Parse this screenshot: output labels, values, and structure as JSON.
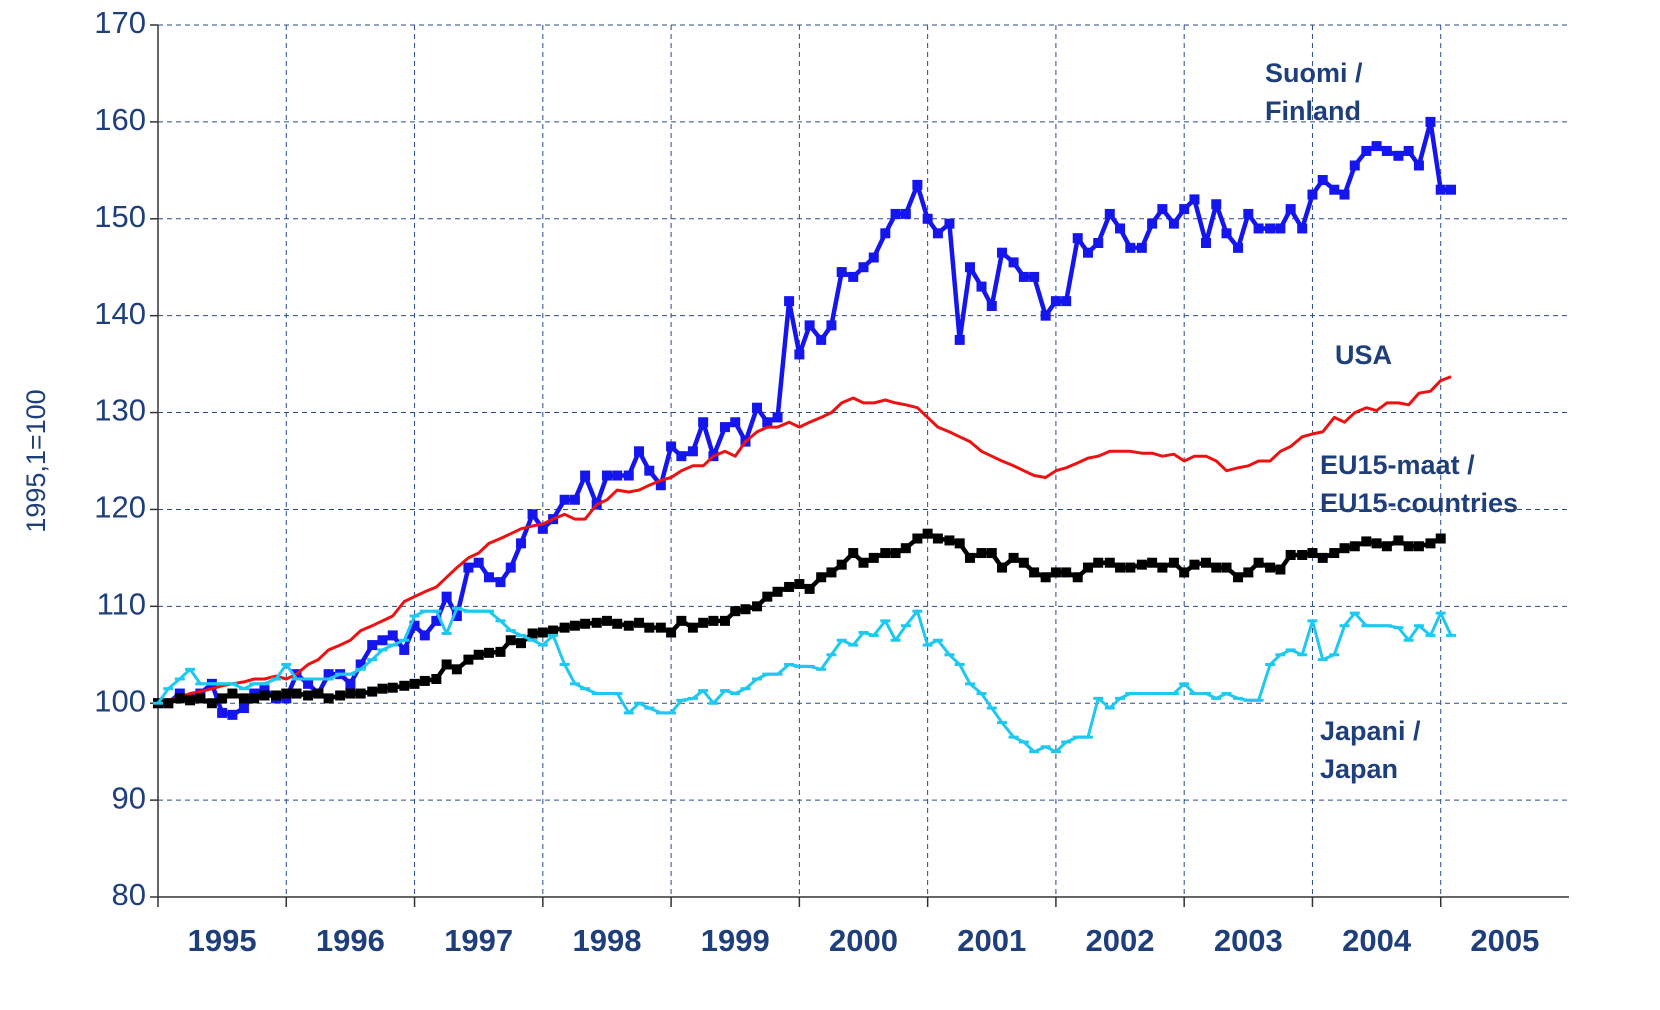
{
  "chart_data": {
    "type": "line",
    "y_label": "1995,1=100",
    "xlim": [
      1995,
      2006
    ],
    "xticks": [
      1995,
      1996,
      1997,
      1998,
      1999,
      2000,
      2001,
      2002,
      2003,
      2004,
      2005
    ],
    "ylim": [
      80,
      170
    ],
    "yticks": [
      80,
      90,
      100,
      110,
      120,
      130,
      140,
      150,
      160,
      170
    ],
    "grid": true,
    "x": [
      1995,
      1995.08,
      1995.17,
      1995.25,
      1995.33,
      1995.42,
      1995.5,
      1995.58,
      1995.67,
      1995.75,
      1995.83,
      1995.92,
      1996,
      1996.08,
      1996.17,
      1996.25,
      1996.33,
      1996.42,
      1996.5,
      1996.58,
      1996.67,
      1996.75,
      1996.83,
      1996.92,
      1997,
      1997.08,
      1997.17,
      1997.25,
      1997.33,
      1997.42,
      1997.5,
      1997.58,
      1997.67,
      1997.75,
      1997.83,
      1997.92,
      1998,
      1998.08,
      1998.17,
      1998.25,
      1998.33,
      1998.42,
      1998.5,
      1998.58,
      1998.67,
      1998.75,
      1998.83,
      1998.92,
      1999,
      1999.08,
      1999.17,
      1999.25,
      1999.33,
      1999.42,
      1999.5,
      1999.58,
      1999.67,
      1999.75,
      1999.83,
      1999.92,
      2000,
      2000.08,
      2000.17,
      2000.25,
      2000.33,
      2000.42,
      2000.5,
      2000.58,
      2000.67,
      2000.75,
      2000.83,
      2000.92,
      2001,
      2001.08,
      2001.17,
      2001.25,
      2001.33,
      2001.42,
      2001.5,
      2001.58,
      2001.67,
      2001.75,
      2001.83,
      2001.92,
      2002,
      2002.08,
      2002.17,
      2002.25,
      2002.33,
      2002.42,
      2002.5,
      2002.58,
      2002.67,
      2002.75,
      2002.83,
      2002.92,
      2003,
      2003.08,
      2003.17,
      2003.25,
      2003.33,
      2003.42,
      2003.5,
      2003.58,
      2003.67,
      2003.75,
      2003.83,
      2003.92,
      2004,
      2004.08,
      2004.17,
      2004.25,
      2004.33,
      2004.42,
      2004.5,
      2004.58,
      2004.67,
      2004.75,
      2004.83,
      2004.92,
      2005,
      2005.08
    ],
    "series": [
      {
        "name": [
          "Suomi /",
          "Finland"
        ],
        "color": "#1515ee",
        "marker": "square",
        "width": 4.5,
        "values": [
          100,
          100,
          101,
          100.5,
          101,
          102,
          99,
          98.8,
          99.5,
          101,
          101.5,
          100.5,
          100.5,
          103,
          102,
          101,
          103,
          103,
          102,
          104,
          106,
          106.5,
          107,
          105.5,
          108,
          107,
          108.5,
          111,
          109,
          114,
          114.5,
          113,
          112.5,
          114,
          116.5,
          119.5,
          118,
          119,
          121,
          121,
          123.5,
          120.5,
          123.5,
          123.5,
          123.5,
          126,
          124,
          122.5,
          126.5,
          125.5,
          126,
          129,
          125.5,
          128.5,
          129,
          127,
          130.5,
          129,
          129.5,
          141.5,
          136,
          139,
          137.5,
          139,
          144.5,
          144,
          145,
          146,
          148.5,
          150.5,
          150.5,
          153.5,
          150,
          148.5,
          149.5,
          137.5,
          145,
          143,
          141,
          146.5,
          145.5,
          144,
          144,
          140,
          141.5,
          141.5,
          148,
          146.5,
          147.5,
          150.5,
          149,
          147,
          147,
          149.5,
          151,
          149.5,
          151,
          152,
          147.5,
          151.5,
          148.5,
          147,
          150.5,
          149,
          149,
          149,
          151,
          149,
          152.5,
          154,
          153,
          152.5,
          155.5,
          157,
          157.5,
          157,
          156.5,
          157,
          155.5,
          160,
          153,
          153
        ]
      },
      {
        "name": [
          "USA"
        ],
        "color": "#ee1111",
        "marker": "none",
        "width": 3,
        "values": [
          100,
          100.3,
          100.6,
          101,
          101.2,
          101.5,
          101.8,
          102,
          102.2,
          102.5,
          102.5,
          102.8,
          102.5,
          103,
          104,
          104.5,
          105.5,
          106,
          106.5,
          107.5,
          108,
          108.5,
          109,
          110.5,
          111,
          111.5,
          112,
          113,
          114,
          115,
          115.5,
          116.5,
          117,
          117.5,
          118,
          118.3,
          118.5,
          119,
          119.5,
          119,
          119,
          120.5,
          121,
          122,
          121.8,
          122,
          122.5,
          123,
          123.3,
          124,
          124.5,
          124.5,
          125.5,
          126,
          125.5,
          127,
          128,
          128.5,
          128.5,
          129,
          128.5,
          129,
          129.5,
          130,
          131,
          131.5,
          131,
          131,
          131.3,
          131,
          130.8,
          130.5,
          129.5,
          128.5,
          128,
          127.5,
          127,
          126,
          125.5,
          125,
          124.5,
          124,
          123.5,
          123.3,
          124,
          124.3,
          124.8,
          125.3,
          125.5,
          126,
          126,
          126,
          125.8,
          125.8,
          125.5,
          125.7,
          125,
          125.5,
          125.5,
          125,
          124,
          124.3,
          124.5,
          125,
          125,
          126,
          126.5,
          127.5,
          127.8,
          128,
          129.5,
          129,
          130,
          130.5,
          130.2,
          131,
          131,
          130.8,
          132,
          132.2,
          133.3,
          133.7
        ]
      },
      {
        "name": [
          "EU15-maat /",
          "EU15-countries"
        ],
        "color": "#000000",
        "marker": "square",
        "width": 4.5,
        "values": [
          100,
          100,
          100.5,
          100.3,
          100.5,
          100,
          100.5,
          101,
          100.5,
          100.5,
          100.8,
          100.8,
          101,
          101,
          100.8,
          101,
          100.5,
          100.8,
          101,
          101,
          101.2,
          101.5,
          101.6,
          101.8,
          102,
          102.3,
          102.5,
          104,
          103.5,
          104.5,
          105,
          105.2,
          105.3,
          106.5,
          106.2,
          107.2,
          107.3,
          107.5,
          107.8,
          108,
          108.2,
          108.3,
          108.5,
          108.2,
          108,
          108.3,
          107.8,
          107.8,
          107.3,
          108.5,
          107.8,
          108.3,
          108.5,
          108.5,
          109.5,
          109.7,
          110,
          111,
          111.5,
          112,
          112.3,
          111.8,
          113,
          113.5,
          114.3,
          115.5,
          114.5,
          115,
          115.5,
          115.5,
          116,
          117,
          117.5,
          117,
          116.8,
          116.5,
          115,
          115.5,
          115.5,
          114,
          115,
          114.5,
          113.5,
          113,
          113.5,
          113.5,
          113,
          114,
          114.5,
          114.5,
          114,
          114,
          114.3,
          114.5,
          114,
          114.5,
          113.5,
          114.3,
          114.5,
          114,
          114,
          113,
          113.5,
          114.5,
          114,
          113.8,
          115.3,
          115.3,
          115.5,
          115,
          115.5,
          116,
          116.2,
          116.7,
          116.5,
          116.2,
          116.8,
          116.2,
          116.2,
          116.5,
          117,
          null
        ]
      },
      {
        "name": [
          "Japani /",
          "Japan"
        ],
        "color": "#1ec8f0",
        "marker": "dash",
        "width": 3,
        "values": [
          100,
          101.5,
          102.5,
          103.5,
          102,
          102,
          102,
          102,
          101.5,
          102,
          102,
          102.5,
          104,
          102.5,
          102.5,
          102.5,
          102.5,
          103,
          103,
          103.5,
          104.5,
          105.5,
          106,
          106.5,
          109,
          109.5,
          109.5,
          107.2,
          109.8,
          109.5,
          109.5,
          109.5,
          108.5,
          107.5,
          107,
          106.5,
          106,
          107,
          104,
          102,
          101.5,
          101,
          101,
          101,
          99,
          100,
          99.5,
          99,
          99,
          100.3,
          100.5,
          101.3,
          100,
          101.3,
          101,
          101.5,
          102.5,
          103,
          103,
          104,
          103.8,
          103.8,
          103.5,
          105,
          106.5,
          106,
          107.3,
          107,
          108.5,
          106.5,
          108,
          109.5,
          106,
          106.5,
          105,
          104,
          102,
          101,
          99.5,
          98,
          96.5,
          96,
          95,
          95.5,
          95,
          96,
          96.5,
          96.5,
          100.5,
          99.5,
          100.5,
          101,
          101,
          101,
          101,
          101,
          102,
          101,
          101,
          100.5,
          101,
          100.5,
          100.3,
          100.3,
          104,
          105,
          105.5,
          105,
          108.5,
          104.5,
          105,
          108,
          109.3,
          108,
          108,
          108,
          107.8,
          106.5,
          108,
          107,
          109.3,
          107
        ]
      }
    ]
  }
}
